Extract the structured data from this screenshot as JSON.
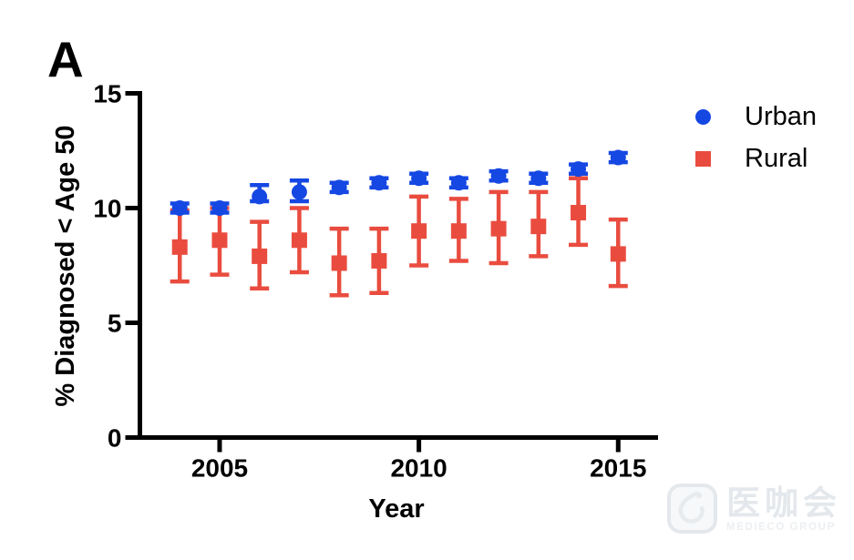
{
  "panel_label": "A",
  "chart_data": {
    "type": "scatter",
    "title": "",
    "xlabel": "Year",
    "ylabel": "% Diagnosed < Age 50",
    "x": [
      2004,
      2005,
      2006,
      2007,
      2008,
      2009,
      2010,
      2011,
      2012,
      2013,
      2014,
      2015
    ],
    "xlim": [
      2003,
      2016
    ],
    "ylim": [
      0,
      15
    ],
    "xticks": [
      2005,
      2010,
      2015
    ],
    "yticks": [
      0,
      5,
      10,
      15
    ],
    "grid": false,
    "legend_position": "right",
    "axis_color": "#000000",
    "series": [
      {
        "name": "Urban",
        "marker": "circle",
        "color": "#1547E3",
        "values": [
          10.0,
          10.0,
          10.5,
          10.7,
          10.9,
          11.1,
          11.3,
          11.1,
          11.4,
          11.3,
          11.7,
          12.2
        ],
        "err_low": [
          9.8,
          9.8,
          10.3,
          10.3,
          10.7,
          10.9,
          11.1,
          10.9,
          11.2,
          11.1,
          11.5,
          12.0
        ],
        "err_high": [
          10.2,
          10.2,
          11.0,
          11.2,
          11.1,
          11.3,
          11.5,
          11.3,
          11.6,
          11.5,
          11.9,
          12.4
        ]
      },
      {
        "name": "Rural",
        "marker": "square",
        "color": "#E94C3F",
        "values": [
          8.3,
          8.6,
          7.9,
          8.6,
          7.6,
          7.7,
          9.0,
          9.0,
          9.1,
          9.2,
          9.8,
          8.0
        ],
        "err_low": [
          6.8,
          7.1,
          6.5,
          7.2,
          6.2,
          6.3,
          7.5,
          7.7,
          7.6,
          7.9,
          8.4,
          6.6
        ],
        "err_high": [
          9.9,
          10.0,
          9.4,
          10.0,
          9.1,
          9.1,
          10.5,
          10.4,
          10.7,
          10.7,
          11.3,
          9.5
        ]
      }
    ]
  },
  "watermark": {
    "cn": "医咖会",
    "en": "MEDIECO GROUP"
  }
}
